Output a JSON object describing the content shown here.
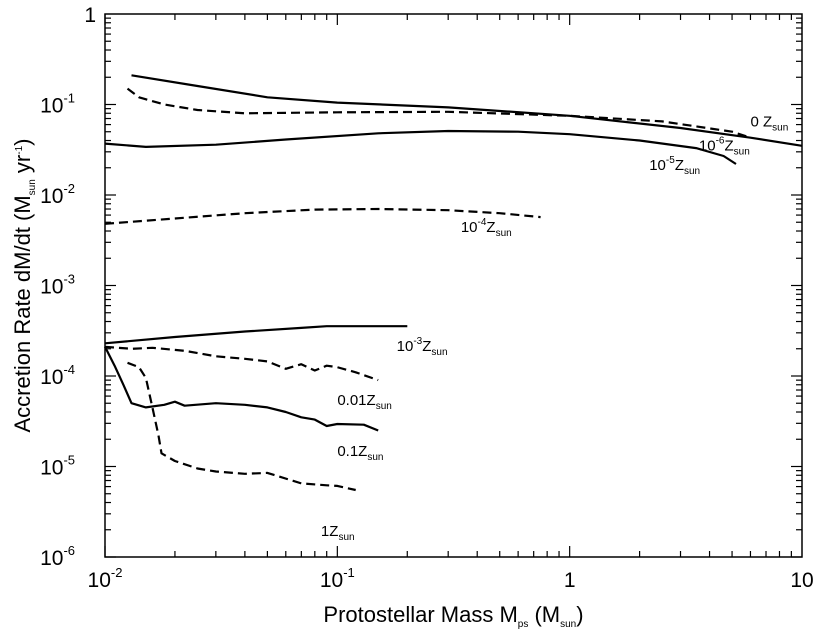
{
  "chart_data": {
    "type": "line",
    "title": "",
    "xlabel": {
      "main": "Protostellar Mass M",
      "sub": "ps",
      "unit_open": " (M",
      "unit_sub": "sun",
      "unit_close": ")"
    },
    "ylabel": {
      "main": "Accretion Rate dM/dt (M",
      "sub": "sun",
      "mid": " yr",
      "sup": "-1",
      "close": ")"
    },
    "xscale": "log",
    "yscale": "log",
    "xlim": [
      0.01,
      10
    ],
    "ylim": [
      1e-06,
      1
    ],
    "x_ticks": [
      {
        "value": 0.01,
        "base": "10",
        "exp": "-2"
      },
      {
        "value": 0.1,
        "base": "10",
        "exp": "-1"
      },
      {
        "value": 1,
        "base": "1",
        "exp": ""
      },
      {
        "value": 10,
        "base": "10",
        "exp": ""
      }
    ],
    "y_ticks": [
      {
        "value": 1,
        "base": "1",
        "exp": ""
      },
      {
        "value": 0.1,
        "base": "10",
        "exp": "-1"
      },
      {
        "value": 0.01,
        "base": "10",
        "exp": "-2"
      },
      {
        "value": 0.001,
        "base": "10",
        "exp": "-3"
      },
      {
        "value": 0.0001,
        "base": "10",
        "exp": "-4"
      },
      {
        "value": 1e-05,
        "base": "10",
        "exp": "-5"
      },
      {
        "value": 1e-06,
        "base": "10",
        "exp": "-6"
      }
    ],
    "series": [
      {
        "name": "0 Z_sun",
        "style": "solid",
        "label": {
          "pre": "0 Z",
          "sup": "",
          "mid": "",
          "sub": "sun",
          "at": [
            6.0,
            0.057
          ]
        },
        "points": [
          [
            0.013,
            0.21
          ],
          [
            0.025,
            0.16
          ],
          [
            0.05,
            0.12
          ],
          [
            0.1,
            0.105
          ],
          [
            0.3,
            0.093
          ],
          [
            1,
            0.075
          ],
          [
            3,
            0.055
          ],
          [
            6,
            0.043
          ],
          [
            10,
            0.035
          ]
        ]
      },
      {
        "name": "10^-6 Z_sun",
        "style": "dashed",
        "label": {
          "pre": "10",
          "sup": "-6",
          "mid": "Z",
          "sub": "sun",
          "at": [
            3.6,
            0.031
          ]
        },
        "points": [
          [
            0.0125,
            0.15
          ],
          [
            0.014,
            0.12
          ],
          [
            0.018,
            0.1
          ],
          [
            0.025,
            0.087
          ],
          [
            0.04,
            0.08
          ],
          [
            0.1,
            0.082
          ],
          [
            0.3,
            0.083
          ],
          [
            1,
            0.075
          ],
          [
            2.5,
            0.065
          ],
          [
            5,
            0.05
          ],
          [
            6,
            0.043
          ]
        ]
      },
      {
        "name": "10^-5 Z_sun",
        "style": "solid",
        "label": {
          "pre": "10",
          "sup": "-5",
          "mid": "Z",
          "sub": "sun",
          "at": [
            2.2,
            0.019
          ]
        },
        "points": [
          [
            0.01,
            0.037
          ],
          [
            0.015,
            0.034
          ],
          [
            0.03,
            0.036
          ],
          [
            0.06,
            0.041
          ],
          [
            0.15,
            0.048
          ],
          [
            0.3,
            0.051
          ],
          [
            0.6,
            0.05
          ],
          [
            1,
            0.047
          ],
          [
            2,
            0.04
          ],
          [
            3.5,
            0.033
          ],
          [
            4.6,
            0.027
          ],
          [
            5.2,
            0.022
          ]
        ]
      },
      {
        "name": "10^-4 Z_sun",
        "style": "dashed",
        "label": {
          "pre": "10",
          "sup": "-4",
          "mid": "Z",
          "sub": "sun",
          "at": [
            0.34,
            0.0039
          ]
        },
        "points": [
          [
            0.01,
            0.0048
          ],
          [
            0.02,
            0.0055
          ],
          [
            0.04,
            0.0063
          ],
          [
            0.08,
            0.0069
          ],
          [
            0.15,
            0.007
          ],
          [
            0.3,
            0.0068
          ],
          [
            0.5,
            0.0063
          ],
          [
            0.75,
            0.0057
          ]
        ]
      },
      {
        "name": "10^-3 Z_sun",
        "style": "solid",
        "label": {
          "pre": "10",
          "sup": "-3",
          "mid": "Z",
          "sub": "sun",
          "at": [
            0.18,
            0.00019
          ]
        },
        "points": [
          [
            0.01,
            0.00023
          ],
          [
            0.02,
            0.00027
          ],
          [
            0.04,
            0.00031
          ],
          [
            0.07,
            0.00034
          ],
          [
            0.09,
            0.000355
          ],
          [
            0.13,
            0.000355
          ],
          [
            0.2,
            0.000355
          ]
        ]
      },
      {
        "name": "0.01 Z_sun",
        "style": "dashed",
        "label": {
          "pre": "0.01Z",
          "sup": "",
          "mid": "",
          "sub": "sun",
          "at": [
            0.1,
            4.8e-05
          ]
        },
        "points": [
          [
            0.01,
            0.00021
          ],
          [
            0.013,
            0.0002
          ],
          [
            0.016,
            0.000205
          ],
          [
            0.022,
            0.00019
          ],
          [
            0.03,
            0.000165
          ],
          [
            0.04,
            0.000155
          ],
          [
            0.05,
            0.000145
          ],
          [
            0.06,
            0.00012
          ],
          [
            0.07,
            0.000135
          ],
          [
            0.08,
            0.000115
          ],
          [
            0.09,
            0.00013
          ],
          [
            0.1,
            0.000125
          ],
          [
            0.12,
            0.00011
          ],
          [
            0.15,
            9e-05
          ]
        ]
      },
      {
        "name": "0.1 Z_sun",
        "style": "solid",
        "label": {
          "pre": "0.1Z",
          "sup": "",
          "mid": "",
          "sub": "sun",
          "at": [
            0.1,
            1.3e-05
          ]
        },
        "points": [
          [
            0.01,
            0.00021
          ],
          [
            0.011,
            0.00013
          ],
          [
            0.012,
            8e-05
          ],
          [
            0.013,
            5e-05
          ],
          [
            0.015,
            4.5e-05
          ],
          [
            0.018,
            4.8e-05
          ],
          [
            0.02,
            5.2e-05
          ],
          [
            0.022,
            4.7e-05
          ],
          [
            0.03,
            5e-05
          ],
          [
            0.04,
            4.8e-05
          ],
          [
            0.05,
            4.5e-05
          ],
          [
            0.06,
            4e-05
          ],
          [
            0.07,
            3.5e-05
          ],
          [
            0.08,
            3.3e-05
          ],
          [
            0.09,
            2.8e-05
          ],
          [
            0.1,
            2.95e-05
          ],
          [
            0.13,
            2.9e-05
          ],
          [
            0.15,
            2.5e-05
          ]
        ]
      },
      {
        "name": "1 Z_sun",
        "style": "dashed",
        "label": {
          "pre": "1Z",
          "sup": "",
          "mid": "",
          "sub": "sun",
          "at": [
            0.085,
            1.7e-06
          ]
        },
        "points": [
          [
            0.0125,
            0.00014
          ],
          [
            0.014,
            0.000125
          ],
          [
            0.015,
            9.5e-05
          ],
          [
            0.016,
            4.5e-05
          ],
          [
            0.017,
            2.2e-05
          ],
          [
            0.0175,
            1.4e-05
          ],
          [
            0.02,
            1.15e-05
          ],
          [
            0.025,
            9.5e-06
          ],
          [
            0.03,
            8.8e-06
          ],
          [
            0.04,
            8.3e-06
          ],
          [
            0.05,
            8.5e-06
          ],
          [
            0.07,
            6.5e-06
          ],
          [
            0.09,
            6.2e-06
          ],
          [
            0.1,
            6.1e-06
          ],
          [
            0.12,
            5.5e-06
          ]
        ]
      }
    ]
  }
}
